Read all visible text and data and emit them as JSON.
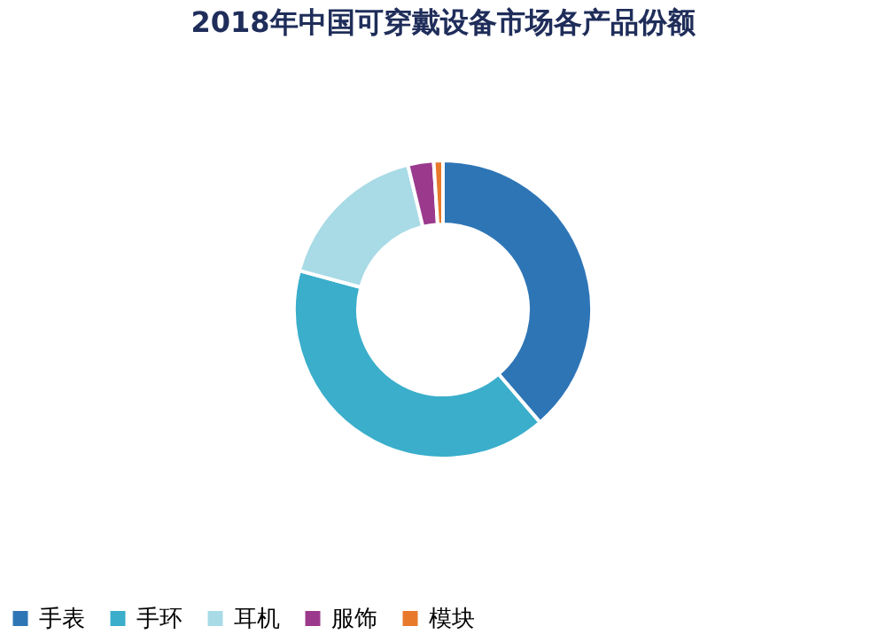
{
  "chart_data": {
    "type": "donut",
    "title": "2018年中国可穿戴设备市场各产品份额",
    "categories": [
      "手表",
      "手环",
      "耳机",
      "服饰",
      "模块"
    ],
    "values": [
      38.7,
      40.5,
      17,
      2.8,
      1
    ],
    "colors": [
      "#2e75b6",
      "#3aaecb",
      "#a8dbe6",
      "#9b3a8c",
      "#e8792b"
    ],
    "legend": "bottom"
  }
}
